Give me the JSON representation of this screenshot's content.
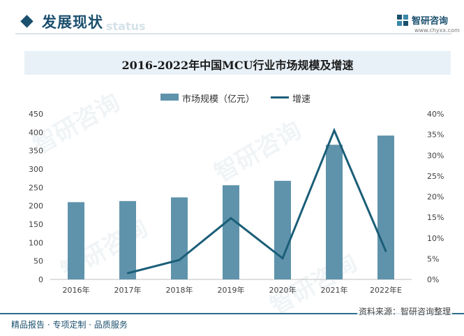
{
  "header": {
    "section_title": "发展现状",
    "ghost_text": "status",
    "brand_name": "智研咨询",
    "brand_url": "www.chyxx.com"
  },
  "chart_data": {
    "type": "bar",
    "title": "2016-2022年中国MCU行业市场规模及增速",
    "categories": [
      "2016年",
      "2017年",
      "2018年",
      "2019年",
      "2020年",
      "2021年",
      "2022年E"
    ],
    "series": [
      {
        "name": "市场规模（亿元）",
        "type": "bar",
        "axis": "left",
        "values": [
          210,
          213,
          223,
          256,
          268,
          366,
          391
        ]
      },
      {
        "name": "增速",
        "type": "line",
        "axis": "right",
        "values": [
          null,
          1.5,
          4.7,
          14.8,
          5.1,
          36.0,
          6.8
        ]
      }
    ],
    "ylim_left": [
      0,
      450
    ],
    "yticks_left": [
      "0",
      "50",
      "100",
      "150",
      "200",
      "250",
      "300",
      "350",
      "400",
      "450"
    ],
    "ylim_right": [
      0,
      40
    ],
    "yticks_right": [
      "0%",
      "5%",
      "10%",
      "15%",
      "20%",
      "25%",
      "30%",
      "35%",
      "40%"
    ],
    "legend_position": "top-center",
    "grid": false,
    "colors": {
      "bar": "#5f93ab",
      "line": "#1b5e78"
    }
  },
  "footer": {
    "source": "资料来源：智研咨询整理",
    "slogan": "精品报告 · 专项定制 · 品质服务"
  }
}
